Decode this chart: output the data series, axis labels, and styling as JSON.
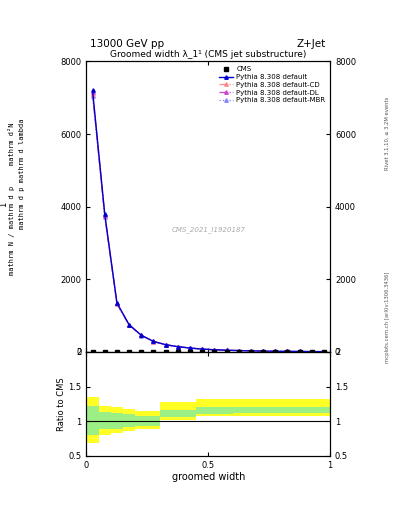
{
  "title": "Groomed width λ_1¹ (CMS jet substructure)",
  "header_left": "13000 GeV pp",
  "header_right": "Z+Jet",
  "xlabel": "groomed width",
  "ylabel_line1": "mathrm d²N",
  "ylabel_line2": "mathrm d p mathrm d lambda",
  "watermark": "CMS_2021_I1920187",
  "right_label": "mcplots.cern.ch [arXiv:1306.3436]",
  "right_label2": "Rivet 3.1.10, ≥ 3.2M events",
  "main_x": [
    0.025,
    0.075,
    0.125,
    0.175,
    0.225,
    0.275,
    0.325,
    0.375,
    0.425,
    0.475,
    0.525,
    0.575,
    0.625,
    0.675,
    0.725,
    0.775,
    0.825,
    0.875,
    0.925,
    0.975
  ],
  "main_y_default": [
    7200,
    3800,
    1350,
    750,
    460,
    290,
    200,
    145,
    108,
    78,
    60,
    47,
    38,
    30,
    24,
    19,
    16,
    13,
    10,
    8
  ],
  "main_y_CD": [
    7100,
    3750,
    1330,
    740,
    455,
    285,
    198,
    143,
    106,
    77,
    59,
    46,
    37,
    29,
    23,
    18,
    15,
    12,
    10,
    8
  ],
  "main_y_DL": [
    7150,
    3770,
    1340,
    745,
    458,
    288,
    199,
    144,
    107,
    77,
    60,
    47,
    38,
    30,
    23,
    19,
    15,
    12,
    10,
    8
  ],
  "main_y_MBR": [
    7050,
    3720,
    1320,
    735,
    450,
    282,
    196,
    142,
    105,
    76,
    58,
    46,
    37,
    29,
    23,
    18,
    15,
    12,
    10,
    8
  ],
  "cms_x": [
    0.025,
    0.075,
    0.125,
    0.175,
    0.225,
    0.275,
    0.325,
    0.375,
    0.425,
    0.475,
    0.525,
    0.575,
    0.625,
    0.675,
    0.725,
    0.775,
    0.825,
    0.875,
    0.925,
    0.975
  ],
  "cms_y": [
    5,
    5,
    5,
    5,
    5,
    5,
    5,
    5,
    5,
    5,
    5,
    5,
    5,
    5,
    5,
    5,
    5,
    5,
    5,
    5
  ],
  "color_default": "#0000cc",
  "color_CD": "#ff8888",
  "color_DL": "#cc44cc",
  "color_MBR": "#8888ff",
  "ratio_bin_edges": [
    0.0,
    0.05,
    0.1,
    0.15,
    0.2,
    0.25,
    0.3,
    0.35,
    0.4,
    0.45,
    0.5,
    0.55,
    0.6,
    0.65,
    0.7,
    0.75,
    0.8,
    0.85,
    0.9,
    0.95,
    1.0
  ],
  "ratio_yellow_low": [
    0.68,
    0.8,
    0.83,
    0.86,
    0.88,
    0.88,
    1.02,
    1.02,
    1.02,
    1.07,
    1.07,
    1.07,
    1.08,
    1.08,
    1.08,
    1.08,
    1.08,
    1.08,
    1.08,
    1.08
  ],
  "ratio_yellow_high": [
    1.35,
    1.22,
    1.2,
    1.18,
    1.15,
    1.15,
    1.28,
    1.28,
    1.28,
    1.32,
    1.32,
    1.32,
    1.32,
    1.32,
    1.32,
    1.32,
    1.32,
    1.32,
    1.32,
    1.32
  ],
  "ratio_green_low": [
    0.8,
    0.88,
    0.89,
    0.92,
    0.93,
    0.93,
    1.06,
    1.06,
    1.06,
    1.1,
    1.1,
    1.1,
    1.11,
    1.11,
    1.11,
    1.11,
    1.11,
    1.11,
    1.11,
    1.11
  ],
  "ratio_green_high": [
    1.22,
    1.13,
    1.12,
    1.1,
    1.08,
    1.08,
    1.16,
    1.16,
    1.16,
    1.2,
    1.2,
    1.2,
    1.2,
    1.2,
    1.2,
    1.2,
    1.2,
    1.2,
    1.2,
    1.2
  ],
  "ylim_main": [
    0,
    8000
  ],
  "ylim_ratio": [
    0.5,
    2.0
  ],
  "yticks_main": [
    0,
    2000,
    4000,
    6000,
    8000
  ],
  "ytick_labels_main": [
    "0",
    "2000",
    "4000",
    "6000",
    "8000"
  ],
  "yticks_ratio": [
    0.5,
    1.0,
    1.5,
    2.0
  ],
  "ytick_labels_ratio": [
    "0.5",
    "1",
    "1.5",
    "2"
  ],
  "xlim": [
    0,
    1
  ],
  "xticks": [
    0.0,
    0.5,
    1.0
  ],
  "xtick_labels": [
    "0",
    "0.5",
    "1"
  ]
}
